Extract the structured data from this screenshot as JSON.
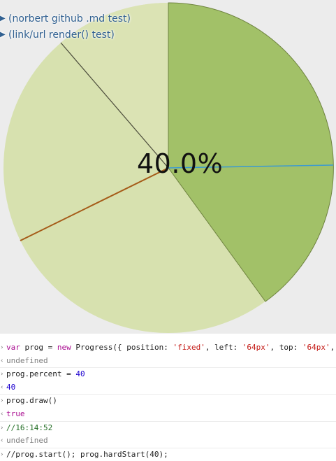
{
  "stage": {
    "percent_label": "40.0%",
    "colors": {
      "background": "#ececec",
      "progress_slice": "#a2c168",
      "remaining_slice": "#d7e1af",
      "progress_needle": "#3a9ad2",
      "orange_needle": "#a55b18"
    },
    "links": [
      {
        "text": "(norbert github .md test)",
        "arrow": "▶"
      },
      {
        "text": "(link/url render() test)",
        "arrow": "▶"
      }
    ]
  },
  "console": {
    "lines": [
      {
        "type": "input",
        "mark": "›",
        "tokens": [
          {
            "t": "kw",
            "s": "var "
          },
          {
            "t": "plain",
            "s": "prog "
          },
          {
            "t": "plain",
            "s": "= "
          },
          {
            "t": "kw",
            "s": "new "
          },
          {
            "t": "plain",
            "s": "Progress({ position: "
          },
          {
            "t": "str",
            "s": "'fixed'"
          },
          {
            "t": "plain",
            "s": ", left: "
          },
          {
            "t": "str",
            "s": "'64px'"
          },
          {
            "t": "plain",
            "s": ", top: "
          },
          {
            "t": "str",
            "s": "'64px'"
          },
          {
            "t": "plain",
            "s": ","
          }
        ]
      },
      {
        "type": "output",
        "mark": "‹",
        "tokens": [
          {
            "t": "out",
            "s": "undefined"
          }
        ]
      },
      {
        "type": "input",
        "mark": "›",
        "tokens": [
          {
            "t": "plain",
            "s": "prog.percent = "
          },
          {
            "t": "num",
            "s": "40"
          }
        ]
      },
      {
        "type": "output",
        "mark": "‹",
        "tokens": [
          {
            "t": "num",
            "s": "40"
          }
        ]
      },
      {
        "type": "input",
        "mark": "›",
        "tokens": [
          {
            "t": "plain",
            "s": "prog.draw()"
          }
        ]
      },
      {
        "type": "output",
        "mark": "‹",
        "tokens": [
          {
            "t": "kw",
            "s": "true"
          }
        ]
      },
      {
        "type": "input",
        "mark": "›",
        "tokens": [
          {
            "t": "comment",
            "s": "//16:14:52"
          }
        ]
      },
      {
        "type": "output",
        "mark": "‹",
        "tokens": [
          {
            "t": "out",
            "s": "undefined"
          }
        ]
      },
      {
        "type": "input",
        "mark": "›",
        "tokens": [
          {
            "t": "plain",
            "s": "//prog.start(); prog.hardStart(40);"
          }
        ]
      }
    ]
  }
}
